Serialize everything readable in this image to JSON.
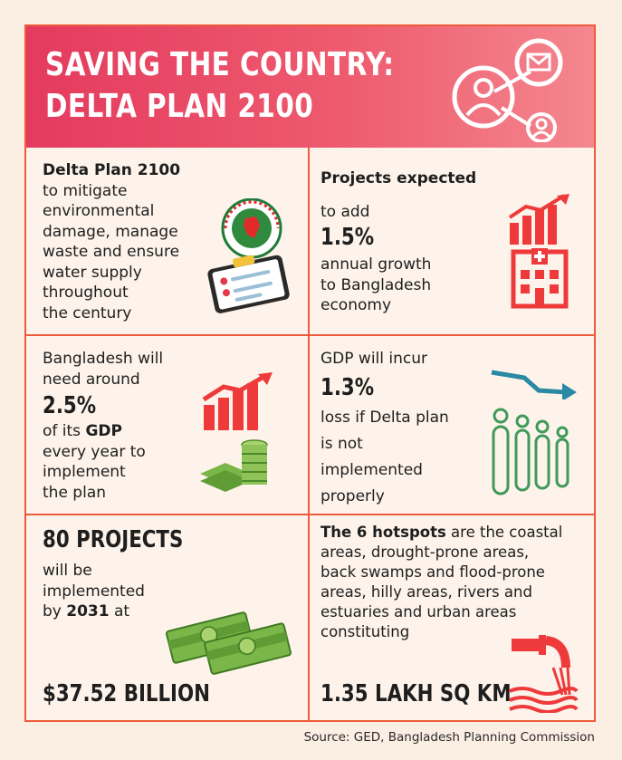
{
  "header": {
    "title_line1": "SAVING THE COUNTRY:",
    "title_line2": "DELTA PLAN 2100"
  },
  "cells": {
    "c1": {
      "title": "Delta Plan 2100",
      "lines": [
        "to mitigate",
        "environmental",
        "damage, manage",
        "waste and ensure",
        "water supply",
        "throughout",
        "the century"
      ]
    },
    "c2": {
      "title": "Projects expected",
      "pre": "to add",
      "figure": "1.5%",
      "lines": [
        "annual growth",
        "to Bangladesh",
        "economy"
      ]
    },
    "c3": {
      "lines_pre": [
        "Bangladesh will",
        "need around"
      ],
      "figure": "2.5%",
      "of_its": "of its ",
      "gdp": "GDP",
      "lines_post": [
        "every year to",
        "implement",
        "the plan"
      ]
    },
    "c4": {
      "pre": "GDP will incur",
      "figure": "1.3%",
      "lines": [
        "loss if Delta plan",
        "is not",
        "implemented",
        "properly"
      ]
    },
    "c5": {
      "figure": "80 PROJECTS",
      "lines": [
        "will be",
        "implemented"
      ],
      "by": "by ",
      "year": "2031",
      "at": " at",
      "amount": "$37.52 BILLION"
    },
    "c6": {
      "bold": "The 6 hotspots",
      "rest_first": " are the coastal",
      "lines": [
        "areas, drought-prone areas,",
        "back swamps and flood-prone",
        "areas, hilly areas, rivers and",
        "estuaries and urban areas",
        "constituting"
      ],
      "amount": "1.35 LAKH SQ KM"
    }
  },
  "source": "Source: GED, Bangladesh Planning Commission",
  "colors": {
    "accent": "#ee3a3a",
    "header_start": "#e43a5e",
    "header_end": "#f4878f",
    "money_green": "#7ab648",
    "people_green": "#3f9a5a",
    "arrow_teal": "#2a8aa3"
  }
}
